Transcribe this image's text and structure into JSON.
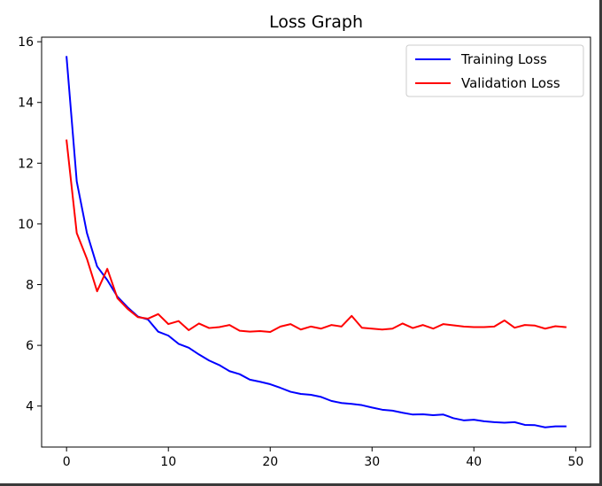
{
  "chart_data": {
    "type": "line",
    "title": "Loss Graph",
    "xlabel": "",
    "ylabel": "",
    "xlim": [
      -2.45,
      51.45
    ],
    "ylim": [
      2.65,
      16.15
    ],
    "xticks": [
      0,
      10,
      20,
      30,
      40,
      50
    ],
    "yticks": [
      4,
      6,
      8,
      10,
      12,
      14,
      16
    ],
    "grid": false,
    "legend_position": "top-right",
    "x": [
      0,
      1,
      2,
      3,
      4,
      5,
      6,
      7,
      8,
      9,
      10,
      11,
      12,
      13,
      14,
      15,
      16,
      17,
      18,
      19,
      20,
      21,
      22,
      23,
      24,
      25,
      26,
      27,
      28,
      29,
      30,
      31,
      32,
      33,
      34,
      35,
      36,
      37,
      38,
      39,
      40,
      41,
      42,
      43,
      44,
      45,
      46,
      47,
      48,
      49
    ],
    "series": [
      {
        "name": "Training Loss",
        "color": "#0000ff",
        "values": [
          15.5,
          11.4,
          9.7,
          8.6,
          8.15,
          7.6,
          7.25,
          6.95,
          6.85,
          6.45,
          6.32,
          6.05,
          5.92,
          5.7,
          5.5,
          5.35,
          5.15,
          5.05,
          4.87,
          4.8,
          4.72,
          4.6,
          4.47,
          4.4,
          4.37,
          4.3,
          4.17,
          4.1,
          4.07,
          4.03,
          3.95,
          3.88,
          3.85,
          3.78,
          3.72,
          3.73,
          3.7,
          3.72,
          3.6,
          3.53,
          3.55,
          3.5,
          3.47,
          3.45,
          3.47,
          3.38,
          3.37,
          3.3,
          3.33,
          3.33
        ]
      },
      {
        "name": "Validation Loss",
        "color": "#ff0000",
        "values": [
          12.75,
          9.7,
          8.85,
          7.78,
          8.52,
          7.55,
          7.2,
          6.93,
          6.88,
          7.03,
          6.7,
          6.8,
          6.5,
          6.72,
          6.57,
          6.6,
          6.67,
          6.48,
          6.45,
          6.47,
          6.44,
          6.62,
          6.7,
          6.52,
          6.62,
          6.55,
          6.67,
          6.62,
          6.97,
          6.58,
          6.55,
          6.52,
          6.55,
          6.72,
          6.57,
          6.67,
          6.55,
          6.7,
          6.66,
          6.62,
          6.6,
          6.6,
          6.62,
          6.82,
          6.58,
          6.67,
          6.65,
          6.55,
          6.63,
          6.6
        ]
      }
    ]
  }
}
